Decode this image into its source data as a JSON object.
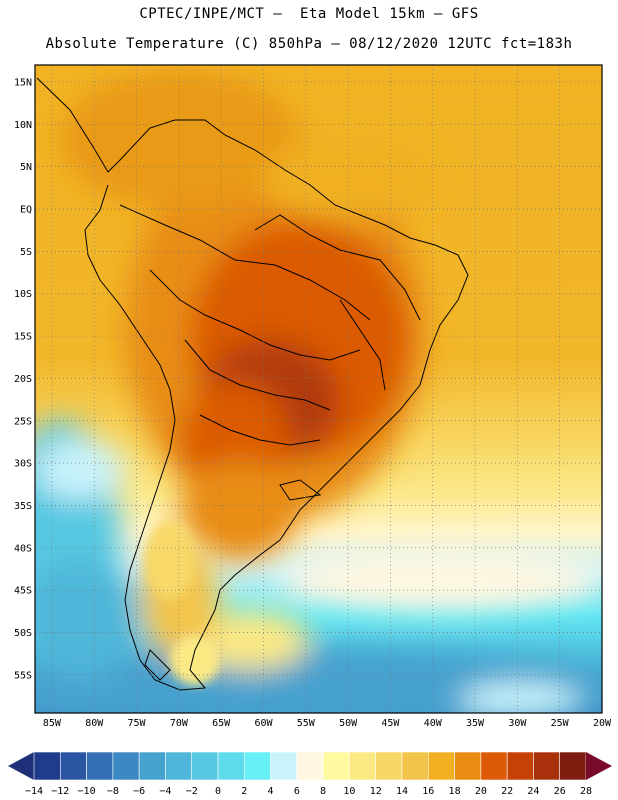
{
  "header": {
    "line1": "CPTEC/INPE/MCT –  Eta Model 15km – GFS",
    "line2": "Absolute Temperature (C) 850hPa – 08/12/2020 12UTC fct=183h"
  },
  "map": {
    "lat_labels": [
      "15N",
      "10N",
      "5N",
      "EQ",
      "5S",
      "10S",
      "15S",
      "20S",
      "25S",
      "30S",
      "35S",
      "40S",
      "45S",
      "50S",
      "55S"
    ],
    "lon_labels": [
      "85W",
      "80W",
      "75W",
      "70W",
      "65W",
      "60W",
      "55W",
      "50W",
      "45W",
      "40W",
      "35W",
      "30W",
      "25W",
      "20W"
    ]
  },
  "colorbar": {
    "ticks": [
      "-14",
      "-12",
      "-10",
      "-8",
      "-6",
      "-4",
      "-2",
      "0",
      "2",
      "4",
      "6",
      "8",
      "10",
      "12",
      "14",
      "16",
      "18",
      "20",
      "22",
      "24",
      "26",
      "28"
    ],
    "colors": [
      "#1f3b8c",
      "#2a55a2",
      "#3470b3",
      "#3c88c3",
      "#46a1cf",
      "#4fb6d9",
      "#57c8e2",
      "#5edcec",
      "#67f0f7",
      "#c9f3fb",
      "#fff7e0",
      "#fffaa0",
      "#fbe984",
      "#f7d867",
      "#f3c44c",
      "#f0b021",
      "#e88d12",
      "#dc5a06",
      "#c64106",
      "#a8300a",
      "#7f1c10"
    ],
    "under_color": "#1f2f7a",
    "over_color": "#7a0a2a"
  }
}
